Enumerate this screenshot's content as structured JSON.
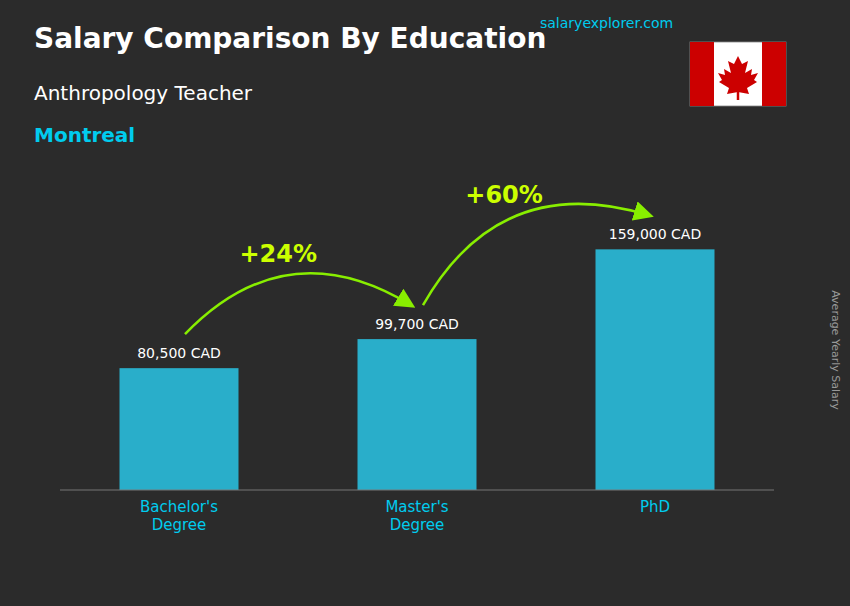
{
  "chart_data": {
    "type": "bar",
    "title": "Salary Comparison By Education",
    "subtitle": [
      "Anthropology Teacher",
      "Montreal"
    ],
    "categories": [
      "Bachelor's\nDegree",
      "Master's\nDegree",
      "PhD"
    ],
    "values": [
      80500,
      99700,
      159000
    ],
    "value_labels": [
      "80,500 CAD",
      "99,700 CAD",
      "159,000 CAD"
    ],
    "data_labels": true,
    "annotations": [
      "+24%",
      "+60%"
    ],
    "source": "salaryexplorer.com",
    "ylabel": "Average Yearly Salary",
    "color": "#29c5e6",
    "ylim": [
      0,
      185000
    ],
    "tick_labels": false,
    "grid": false
  }
}
